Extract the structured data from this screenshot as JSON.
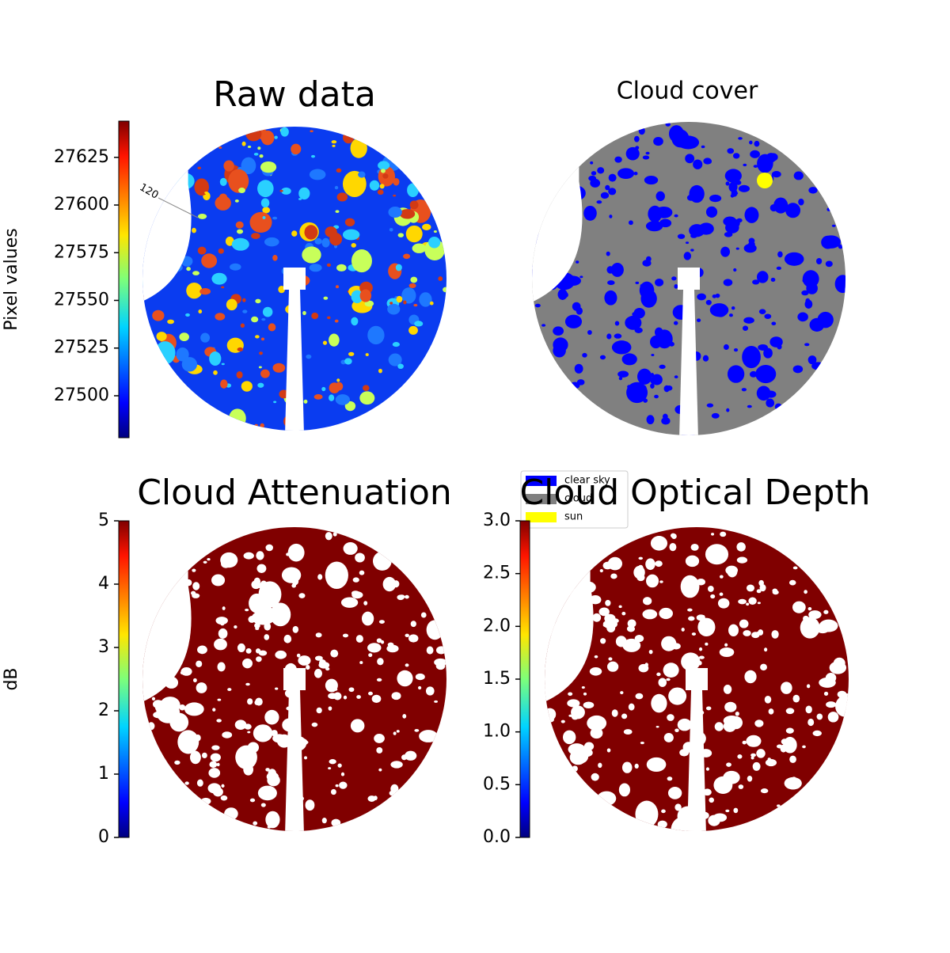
{
  "chart_data": [
    {
      "type": "image",
      "title": "Raw data",
      "annotations": [
        "120"
      ],
      "colorbar": {
        "label": "Pixel values",
        "lim": [
          27478,
          27644
        ],
        "ticks": [
          27500,
          27525,
          27550,
          27575,
          27600,
          27625
        ]
      }
    },
    {
      "type": "image",
      "title": "Cloud cover",
      "legend": {
        "loc": "lower left",
        "entries": [
          {
            "name": "clear sky",
            "color": "#0000ff"
          },
          {
            "name": "cloud",
            "color": "#808080"
          },
          {
            "name": "sun",
            "color": "#ffff00"
          }
        ]
      }
    },
    {
      "type": "image",
      "title": "Cloud Attenuation",
      "colorbar": {
        "label": "dB",
        "lim": [
          0,
          5
        ],
        "ticks": [
          0,
          1,
          2,
          3,
          4,
          5
        ]
      }
    },
    {
      "type": "image",
      "title": "Cloud Optical Depth",
      "colorbar": {
        "lim": [
          0,
          3
        ],
        "ticks": [
          {
            "value": 0,
            "label": "0.0"
          },
          0.5,
          {
            "value": 1,
            "label": "1.0"
          },
          1.5,
          {
            "value": 2,
            "label": "2.0"
          },
          2.5,
          {
            "value": 3,
            "label": "3.0"
          }
        ]
      }
    }
  ]
}
